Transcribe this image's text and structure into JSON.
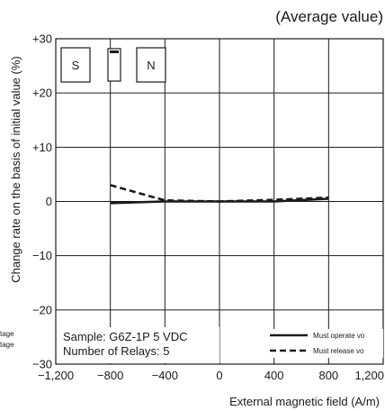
{
  "chart_data": {
    "type": "line",
    "title": "(Average value)",
    "xlabel": "External magnetic field (A/m)",
    "ylabel": "Change rate on the basis of initial value (%)",
    "xlim": [
      -1200,
      1200
    ],
    "ylim": [
      -30,
      30
    ],
    "x_ticks": [
      "−1,200",
      "−800",
      "−400",
      "0",
      "400",
      "800",
      "1,200"
    ],
    "y_ticks": [
      "+30",
      "+20",
      "+10",
      "0",
      "−10",
      "−20",
      "−30"
    ],
    "grid": true,
    "series": [
      {
        "name": "Must operate voltage",
        "style": "solid",
        "x": [
          -800,
          -400,
          0,
          400,
          800
        ],
        "y": [
          -0.3,
          0.0,
          0.0,
          0.0,
          0.5
        ]
      },
      {
        "name": "Must release voltage",
        "style": "dashed",
        "x": [
          -800,
          -400,
          0,
          400,
          800
        ],
        "y": [
          3.0,
          0.2,
          0.0,
          0.3,
          0.7
        ]
      }
    ],
    "left_legend_fragments": [
      "tage",
      "tage"
    ],
    "legend_visible": [
      "Must operate vo",
      "Must release vo"
    ],
    "annotations": {
      "sample": "Sample: G6Z-1P  5 VDC",
      "relays": "Number of Relays: 5"
    },
    "magnet_labels": [
      "S",
      "N"
    ]
  }
}
